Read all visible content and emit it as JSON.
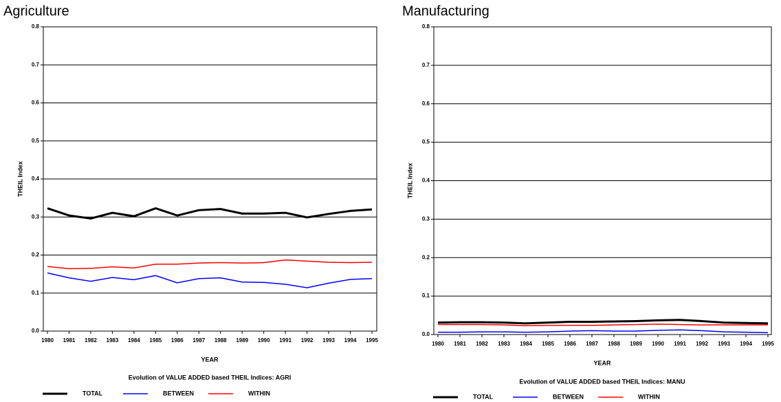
{
  "chart_data": [
    {
      "type": "line",
      "title": "Agriculture",
      "x_label": "YEAR",
      "y_label": "THEIL Index",
      "caption": "Evolution of VALUE ADDED based THEIL Indices: AGRI",
      "categories": [
        "1980",
        "1981",
        "1982",
        "1983",
        "1984",
        "1985",
        "1986",
        "1987",
        "1988",
        "1989",
        "1990",
        "1991",
        "1992",
        "1993",
        "1994",
        "1995"
      ],
      "ylim": [
        0,
        0.8
      ],
      "yticks": [
        {
          "value": 0,
          "label": "0.0"
        },
        0.1,
        0.2,
        0.3,
        0.4,
        0.5,
        0.6,
        0.7,
        0.8
      ],
      "grid": true,
      "series": [
        {
          "name": "TOTAL",
          "color": "#000000",
          "values": [
            0.323,
            0.304,
            0.296,
            0.311,
            0.302,
            0.323,
            0.304,
            0.318,
            0.321,
            0.309,
            0.309,
            0.311,
            0.299,
            0.308,
            0.316,
            0.32
          ]
        },
        {
          "name": "BETWEEN",
          "color": "#0000ff",
          "values": [
            0.153,
            0.14,
            0.131,
            0.141,
            0.135,
            0.146,
            0.127,
            0.138,
            0.14,
            0.129,
            0.128,
            0.123,
            0.114,
            0.126,
            0.136,
            0.138
          ]
        },
        {
          "name": "WITHIN",
          "color": "#ff0000",
          "values": [
            0.17,
            0.164,
            0.165,
            0.169,
            0.166,
            0.176,
            0.176,
            0.179,
            0.18,
            0.179,
            0.18,
            0.187,
            0.184,
            0.181,
            0.18,
            0.181
          ]
        }
      ]
    },
    {
      "type": "line",
      "title": "Manufacturing",
      "x_label": "YEAR",
      "y_label": "THEIL Index",
      "caption": "Evolution of VALUE ADDED based THEIL Indices: MANU",
      "categories": [
        "1980",
        "1981",
        "1982",
        "1983",
        "1984",
        "1985",
        "1986",
        "1987",
        "1988",
        "1989",
        "1990",
        "1991",
        "1992",
        "1993",
        "1994",
        "1995"
      ],
      "ylim": [
        0,
        0.8
      ],
      "yticks": [
        {
          "value": 0,
          "label": "0.0"
        },
        0.1,
        0.2,
        0.3,
        0.4,
        0.5,
        0.6,
        0.7,
        0.8
      ],
      "grid": true,
      "series": [
        {
          "name": "TOTAL",
          "color": "#000000",
          "values": [
            0.031,
            0.032,
            0.032,
            0.031,
            0.029,
            0.031,
            0.033,
            0.033,
            0.034,
            0.035,
            0.037,
            0.038,
            0.035,
            0.031,
            0.03,
            0.029
          ]
        },
        {
          "name": "BETWEEN",
          "color": "#0000ff",
          "values": [
            0.006,
            0.006,
            0.007,
            0.007,
            0.006,
            0.007,
            0.009,
            0.01,
            0.009,
            0.009,
            0.011,
            0.012,
            0.01,
            0.007,
            0.006,
            0.005
          ]
        },
        {
          "name": "WITHIN",
          "color": "#ff0000",
          "values": [
            0.026,
            0.026,
            0.026,
            0.025,
            0.023,
            0.024,
            0.024,
            0.024,
            0.025,
            0.026,
            0.027,
            0.026,
            0.025,
            0.025,
            0.025,
            0.025
          ]
        }
      ]
    }
  ]
}
